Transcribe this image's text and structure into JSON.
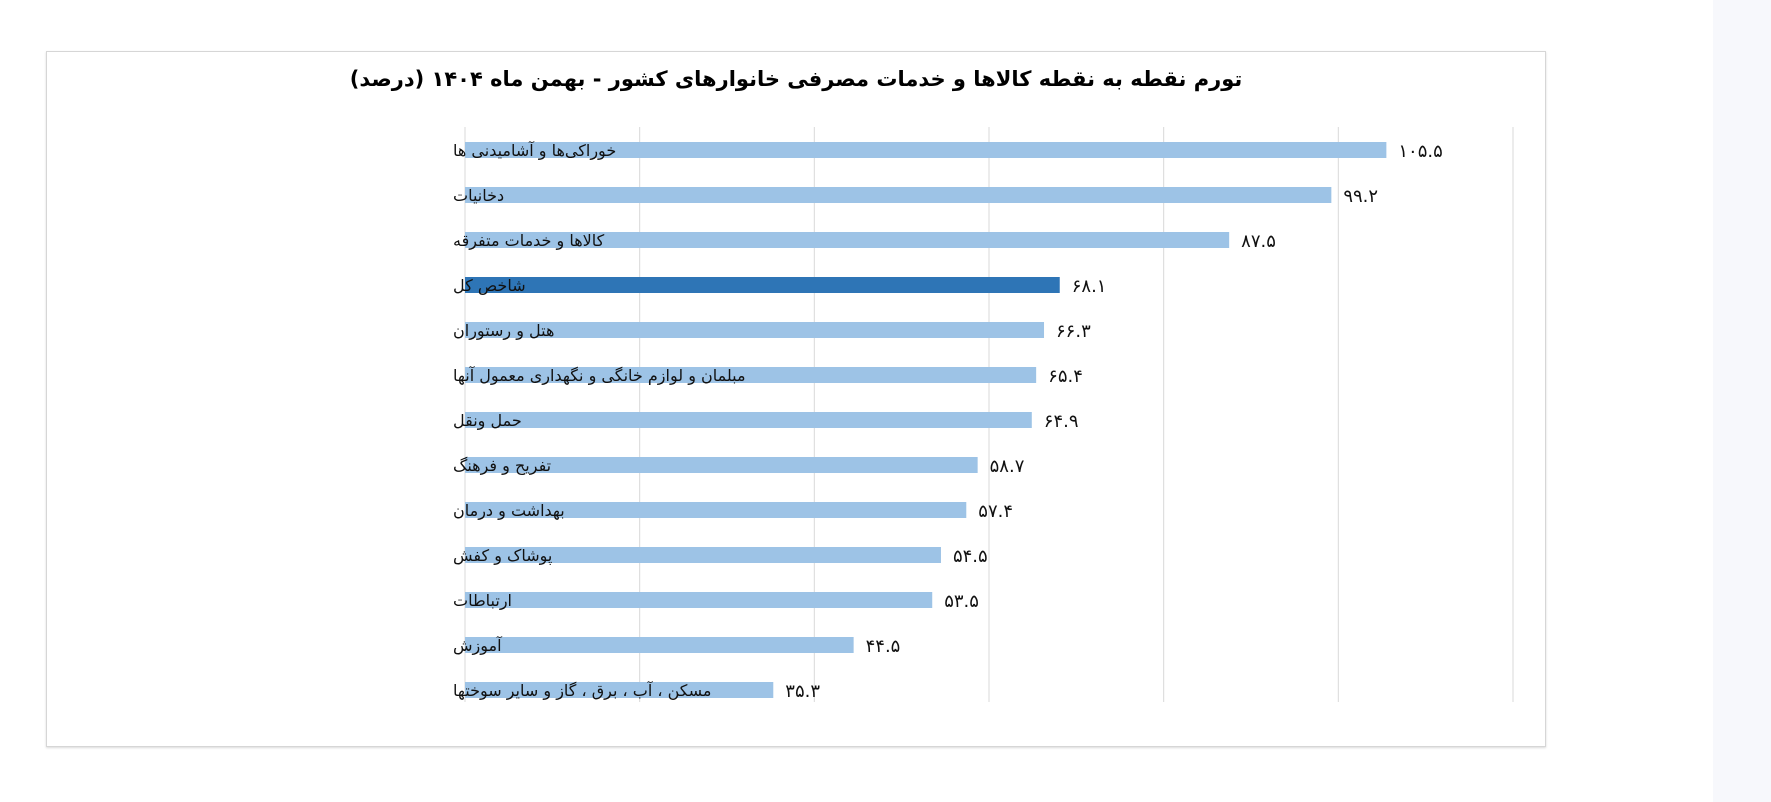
{
  "chart_data": {
    "type": "bar",
    "orientation": "horizontal",
    "title": "تورم نقطه به نقطه کالاها و خدمات مصرفی خانوارهای کشور - بهمن ماه ۱۴۰۴ (درصد)",
    "categories": [
      "خوراکی‌ها و آشامیدنی ها",
      "دخانیات",
      "کالاها و خدمات متفرقه",
      "شاخص کل",
      "هتل و رستوران",
      "مبلمان و لوازم خانگی و نگهداری معمول آنها",
      "حمل ونقل",
      "تفریح و فرهنگ",
      "بهداشت و درمان",
      "پوشاک و کفش",
      "ارتباطات",
      "آموزش",
      "مسکن ، آب ، برق ، گاز و سایر سوختها"
    ],
    "values": [
      105.5,
      99.2,
      87.5,
      68.1,
      66.3,
      65.4,
      64.9,
      58.7,
      57.4,
      54.5,
      53.5,
      44.5,
      35.3
    ],
    "data_labels": [
      "۱۰۵.۵",
      "۹۹.۲",
      "۸۷.۵",
      "۶۸.۱",
      "۶۶.۳",
      "۶۵.۴",
      "۶۴.۹",
      "۵۸.۷",
      "۵۷.۴",
      "۵۴.۵",
      "۵۳.۵",
      "۴۴.۵",
      "۳۵.۳"
    ],
    "xlim": [
      0,
      120
    ],
    "gridlines": "vertical",
    "tick_labels_shown": false,
    "highlight_category": "شاخص کل",
    "colors": {
      "bar": "#9dc3e6",
      "highlight": "#2e75b6",
      "grid": "#d9d9d9"
    }
  }
}
